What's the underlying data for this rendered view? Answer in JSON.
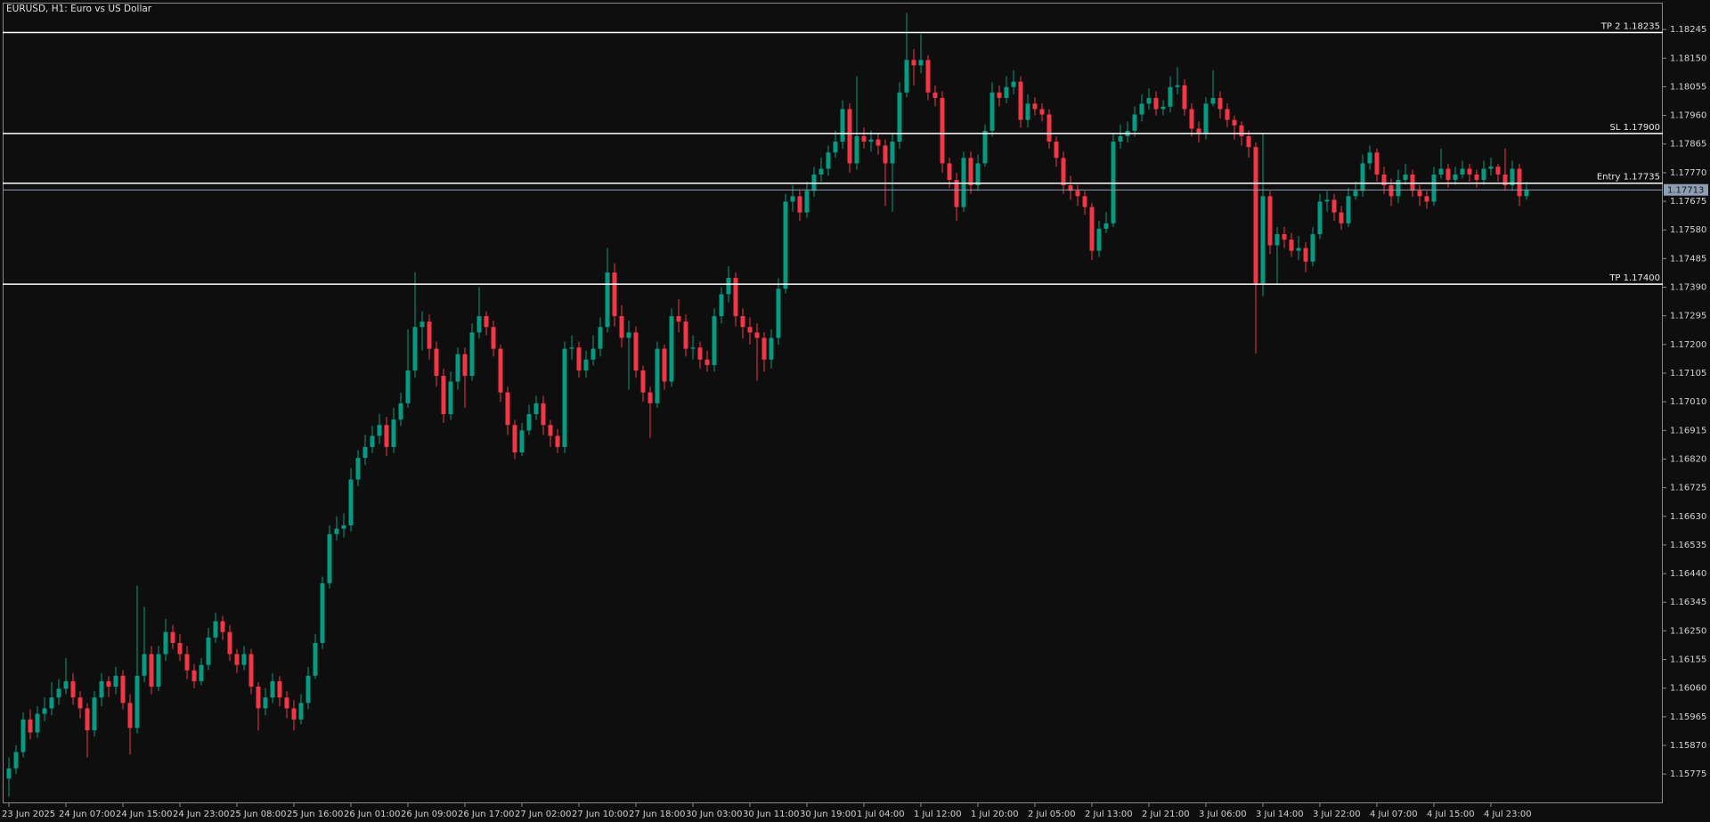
{
  "chart_data": {
    "type": "candlestick",
    "title": "EURUSD, H1:  Euro vs US Dollar",
    "colors": {
      "up": "#089981",
      "down": "#f23645",
      "level": "#ffffff",
      "current": "#8d9db4"
    },
    "categories": [
      "23 Jun 2025",
      null,
      null,
      null,
      null,
      null,
      null,
      null,
      "24 Jun 07:00",
      null,
      null,
      null,
      null,
      null,
      null,
      null,
      "24 Jun 15:00",
      null,
      null,
      null,
      null,
      null,
      null,
      null,
      "24 Jun 23:00",
      null,
      null,
      null,
      null,
      null,
      null,
      null,
      "25 Jun 08:00",
      null,
      null,
      null,
      null,
      null,
      null,
      null,
      "25 Jun 16:00",
      null,
      null,
      null,
      null,
      null,
      null,
      null,
      "26 Jun 01:00",
      null,
      null,
      null,
      null,
      null,
      null,
      null,
      "26 Jun 09:00",
      null,
      null,
      null,
      null,
      null,
      null,
      null,
      "26 Jun 17:00",
      null,
      null,
      null,
      null,
      null,
      null,
      null,
      "27 Jun 02:00",
      null,
      null,
      null,
      null,
      null,
      null,
      null,
      "27 Jun 10:00",
      null,
      null,
      null,
      null,
      null,
      null,
      null,
      "27 Jun 18:00",
      null,
      null,
      null,
      null,
      null,
      null,
      null,
      "30 Jun 03:00",
      null,
      null,
      null,
      null,
      null,
      null,
      null,
      "30 Jun 11:00",
      null,
      null,
      null,
      null,
      null,
      null,
      null,
      "30 Jun 19:00",
      null,
      null,
      null,
      null,
      null,
      null,
      null,
      "1 Jul 04:00",
      null,
      null,
      null,
      null,
      null,
      null,
      null,
      "1 Jul 12:00",
      null,
      null,
      null,
      null,
      null,
      null,
      null,
      "1 Jul 20:00",
      null,
      null,
      null,
      null,
      null,
      null,
      null,
      "2 Jul 05:00",
      null,
      null,
      null,
      null,
      null,
      null,
      null,
      "2 Jul 13:00",
      null,
      null,
      null,
      null,
      null,
      null,
      null,
      "2 Jul 21:00",
      null,
      null,
      null,
      null,
      null,
      null,
      null,
      "3 Jul 06:00",
      null,
      null,
      null,
      null,
      null,
      null,
      null,
      "3 Jul 14:00",
      null,
      null,
      null,
      null,
      null,
      null,
      null,
      "3 Jul 22:00",
      null,
      null,
      null,
      null,
      null,
      null,
      null,
      "4 Jul 07:00",
      null,
      null,
      null,
      null,
      null,
      null,
      null,
      "4 Jul 15:00",
      null,
      null,
      null,
      null,
      null,
      null,
      null,
      "4 Jul 23:00",
      null,
      null,
      null,
      null,
      null
    ],
    "open": [
      1.1576,
      1.15794,
      1.15848,
      1.15956,
      1.15913,
      1.15975,
      1.15993,
      1.16029,
      1.16058,
      1.16083,
      1.16029,
      1.15993,
      1.1592,
      1.16029,
      1.16083,
      1.16065,
      1.16101,
      1.16011,
      1.15928,
      1.16101,
      1.16173,
      1.16065,
      1.16173,
      1.16246,
      1.1621,
      1.16173,
      1.16119,
      1.16083,
      1.16137,
      1.16228,
      1.16282,
      1.16246,
      1.16173,
      1.16137,
      1.16173,
      1.16065,
      1.15993,
      1.16029,
      1.16083,
      1.16029,
      1.15993,
      1.15956,
      1.16011,
      1.16101,
      1.1621,
      1.16408,
      1.16571,
      1.16589,
      1.166,
      1.16752,
      1.16824,
      1.1686,
      1.16897,
      1.16933,
      1.1686,
      1.16951,
      1.17005,
      1.17114,
      1.17258,
      1.17276,
      1.17186,
      1.17096,
      1.16969,
      1.17077,
      1.17168,
      1.17096,
      1.1724,
      1.17294,
      1.17258,
      1.17186,
      1.17041,
      1.16933,
      1.16842,
      1.16915,
      1.16969,
      1.17005,
      1.16933,
      1.16897,
      1.1686,
      1.17186,
      1.1719,
      1.17114,
      1.1715,
      1.17186,
      1.17258,
      1.17439,
      1.17294,
      1.17222,
      1.1724,
      1.17114,
      1.17041,
      1.17005,
      1.17186,
      1.17077,
      1.17294,
      1.17276,
      1.17186,
      1.1719,
      1.1715,
      1.17132,
      1.17294,
      1.17367,
      1.17421,
      1.17294,
      1.17258,
      1.1724,
      1.17222,
      1.1715,
      1.17222,
      1.17385,
      1.17674,
      1.17692,
      1.17638,
      1.1771,
      1.17764,
      1.17783,
      1.17837,
      1.17873,
      1.17981,
      1.17801,
      1.17891,
      1.17873,
      1.1788,
      1.1786,
      1.17801,
      1.17873,
      1.18036,
      1.18144,
      1.18126,
      1.18144,
      1.18036,
      1.18018,
      1.17801,
      1.17746,
      1.17656,
      1.17819,
      1.17728,
      1.17801,
      1.17909,
      1.18036,
      1.18018,
      1.18054,
      1.18072,
      1.17945,
      1.17999,
      1.17981,
      1.17963,
      1.17873,
      1.17819,
      1.17728,
      1.1771,
      1.17692,
      1.17656,
      1.17511,
      1.17584,
      1.17602,
      1.17873,
      1.17891,
      1.17909,
      1.17963,
      1.17999,
      1.18018,
      1.17981,
      1.17989,
      1.18054,
      1.1806,
      1.17981,
      1.17916,
      1.17902,
      1.17999,
      1.18018,
      1.17981,
      1.17945,
      1.17927,
      1.17891,
      1.17855,
      1.17403,
      1.17692,
      1.17529,
      1.17566,
      1.17548,
      1.17511,
      1.1752,
      1.17475,
      1.17566,
      1.17674,
      1.1768,
      1.17638,
      1.17602,
      1.17692,
      1.1771,
      1.17801,
      1.17837,
      1.17764,
      1.17728,
      1.17692,
      1.17746,
      1.17764,
      1.1771,
      1.17692,
      1.17674,
      1.17764,
      1.17783,
      1.17746,
      1.17764,
      1.17783,
      1.17764,
      1.17746,
      1.17783,
      1.1779,
      1.17764,
      1.17728,
      1.17783,
      1.17692
    ],
    "high": [
      1.1583,
      1.1587,
      1.1598,
      1.1599,
      1.16,
      1.1603,
      1.1608,
      1.1609,
      1.1616,
      1.1611,
      1.1605,
      1.1601,
      1.1605,
      1.1611,
      1.161,
      1.1613,
      1.1612,
      1.1604,
      1.164,
      1.1633,
      1.162,
      1.162,
      1.1629,
      1.1627,
      1.1624,
      1.162,
      1.1614,
      1.1616,
      1.1626,
      1.1631,
      1.163,
      1.1627,
      1.1619,
      1.162,
      1.1619,
      1.1608,
      1.1606,
      1.1611,
      1.161,
      1.1605,
      1.1602,
      1.1604,
      1.1613,
      1.1624,
      1.1643,
      1.166,
      1.1663,
      1.1664,
      1.1679,
      1.1685,
      1.169,
      1.1693,
      1.1697,
      1.1696,
      1.1699,
      1.1704,
      1.1725,
      1.1744,
      1.1731,
      1.173,
      1.1721,
      1.1712,
      1.1711,
      1.1719,
      1.1719,
      1.1727,
      1.1739,
      1.1731,
      1.1728,
      1.172,
      1.1706,
      1.1695,
      1.1694,
      1.17,
      1.1703,
      1.1703,
      1.1695,
      1.1692,
      1.1721,
      1.1723,
      1.1721,
      1.1718,
      1.1723,
      1.1729,
      1.1752,
      1.1747,
      1.1733,
      1.1728,
      1.1726,
      1.1713,
      1.1706,
      1.1721,
      1.172,
      1.1732,
      1.1735,
      1.173,
      1.1723,
      1.1721,
      1.1718,
      1.1732,
      1.1739,
      1.1746,
      1.1744,
      1.1732,
      1.1729,
      1.1727,
      1.1724,
      1.1725,
      1.1742,
      1.177,
      1.1773,
      1.1771,
      1.1774,
      1.1779,
      1.1782,
      1.1786,
      1.1791,
      1.1801,
      1.18,
      1.1809,
      1.1792,
      1.1791,
      1.179,
      1.1788,
      1.179,
      1.1807,
      1.183,
      1.1818,
      1.1823,
      1.1816,
      1.1806,
      1.1804,
      1.1782,
      1.1777,
      1.1784,
      1.1784,
      1.1783,
      1.1793,
      1.1807,
      1.1806,
      1.1809,
      1.1811,
      1.1809,
      1.1803,
      1.1802,
      1.18,
      1.1798,
      1.1789,
      1.1784,
      1.1776,
      1.1773,
      1.1771,
      1.1767,
      1.1761,
      1.1764,
      1.179,
      1.1793,
      1.1794,
      1.1799,
      1.1803,
      1.1805,
      1.1804,
      1.1801,
      1.1809,
      1.1812,
      1.1808,
      1.18,
      1.1794,
      1.1802,
      1.1811,
      1.1804,
      1.18,
      1.1796,
      1.1794,
      1.1791,
      1.1787,
      1.179,
      1.1771,
      1.1759,
      1.1759,
      1.1757,
      1.1756,
      1.1754,
      1.1759,
      1.177,
      1.1771,
      1.177,
      1.1766,
      1.1772,
      1.1774,
      1.1783,
      1.1786,
      1.1785,
      1.1779,
      1.1775,
      1.1778,
      1.178,
      1.1778,
      1.1773,
      1.1771,
      1.1779,
      1.1785,
      1.178,
      1.1779,
      1.1781,
      1.178,
      1.1778,
      1.1781,
      1.1782,
      1.178,
      1.1785,
      1.1781,
      1.178,
      1.1774
    ],
    "low": [
      1.157,
      1.15775,
      1.1583,
      1.1589,
      1.15895,
      1.1595,
      1.1597,
      1.16005,
      1.1604,
      1.16005,
      1.1596,
      1.1583,
      1.159,
      1.16,
      1.1603,
      1.1604,
      1.1599,
      1.1584,
      1.1591,
      1.1608,
      1.1604,
      1.1605,
      1.1615,
      1.1619,
      1.1615,
      1.1609,
      1.1606,
      1.1607,
      1.1612,
      1.1621,
      1.1622,
      1.1615,
      1.1611,
      1.1612,
      1.1604,
      1.1592,
      1.1597,
      1.1601,
      1.16,
      1.1596,
      1.1592,
      1.1594,
      1.1599,
      1.1609,
      1.1619,
      1.1639,
      1.1655,
      1.1656,
      1.1658,
      1.1673,
      1.168,
      1.1684,
      1.1687,
      1.1683,
      1.1684,
      1.1693,
      1.1699,
      1.1709,
      1.1718,
      1.1715,
      1.1706,
      1.1694,
      1.1695,
      1.1705,
      1.1699,
      1.1708,
      1.1722,
      1.1723,
      1.1716,
      1.1701,
      1.169,
      1.1682,
      1.1683,
      1.169,
      1.1695,
      1.169,
      1.1686,
      1.1684,
      1.1684,
      1.1715,
      1.1709,
      1.1709,
      1.1713,
      1.1716,
      1.1724,
      1.1726,
      1.1719,
      1.1705,
      1.1709,
      1.1701,
      1.1689,
      1.1699,
      1.1705,
      1.1706,
      1.1724,
      1.1716,
      1.1715,
      1.1712,
      1.1711,
      1.1711,
      1.1727,
      1.1734,
      1.1726,
      1.1722,
      1.172,
      1.1708,
      1.1711,
      1.1712,
      1.172,
      1.1737,
      1.1764,
      1.1761,
      1.1762,
      1.1769,
      1.1774,
      1.1776,
      1.1782,
      1.1785,
      1.1777,
      1.1778,
      1.1785,
      1.1784,
      1.1783,
      1.1766,
      1.1764,
      1.1785,
      1.1802,
      1.1806,
      1.181,
      1.1801,
      1.1799,
      1.1777,
      1.1772,
      1.1761,
      1.1764,
      1.177,
      1.1771,
      1.1779,
      1.1789,
      1.1799,
      1.18,
      1.1803,
      1.1792,
      1.1792,
      1.1796,
      1.1794,
      1.1785,
      1.1779,
      1.177,
      1.1768,
      1.1766,
      1.1763,
      1.1748,
      1.1749,
      1.1757,
      1.1759,
      1.1785,
      1.1787,
      1.1789,
      1.1794,
      1.1798,
      1.1796,
      1.1796,
      1.1797,
      1.1803,
      1.1796,
      1.1789,
      1.1787,
      1.1788,
      1.1799,
      1.1795,
      1.1792,
      1.1788,
      1.1786,
      1.1782,
      1.1717,
      1.1736,
      1.175,
      1.174,
      1.1752,
      1.1749,
      1.1748,
      1.1744,
      1.1746,
      1.1755,
      1.1764,
      1.1761,
      1.1758,
      1.1759,
      1.1768,
      1.1769,
      1.1778,
      1.1774,
      1.177,
      1.1766,
      1.1767,
      1.1773,
      1.1769,
      1.1766,
      1.1765,
      1.1766,
      1.1775,
      1.1772,
      1.1773,
      1.1775,
      1.1774,
      1.1772,
      1.1773,
      1.1776,
      1.1774,
      1.1771,
      1.1771,
      1.1766,
      1.1768
    ],
    "close": [
      1.15794,
      1.15848,
      1.15956,
      1.15913,
      1.15975,
      1.15993,
      1.16029,
      1.16058,
      1.16083,
      1.16029,
      1.15993,
      1.1592,
      1.16029,
      1.16083,
      1.16065,
      1.16101,
      1.16011,
      1.15928,
      1.16101,
      1.16173,
      1.16065,
      1.16173,
      1.16246,
      1.1621,
      1.16173,
      1.16119,
      1.16083,
      1.16137,
      1.16228,
      1.16282,
      1.16246,
      1.16173,
      1.16137,
      1.16173,
      1.16065,
      1.15993,
      1.16029,
      1.16083,
      1.16029,
      1.15993,
      1.15956,
      1.16011,
      1.16101,
      1.1621,
      1.16408,
      1.16571,
      1.16589,
      1.166,
      1.16752,
      1.16824,
      1.1686,
      1.16897,
      1.16933,
      1.1686,
      1.16951,
      1.17005,
      1.17114,
      1.17258,
      1.17276,
      1.17186,
      1.17096,
      1.16969,
      1.17077,
      1.17168,
      1.17096,
      1.1724,
      1.17294,
      1.17258,
      1.17186,
      1.17041,
      1.16933,
      1.16842,
      1.16915,
      1.16969,
      1.17005,
      1.16933,
      1.16897,
      1.1686,
      1.17186,
      1.1719,
      1.17114,
      1.1715,
      1.17186,
      1.17258,
      1.17439,
      1.17294,
      1.17222,
      1.1724,
      1.17114,
      1.17041,
      1.17005,
      1.17186,
      1.17077,
      1.17294,
      1.17276,
      1.17186,
      1.1719,
      1.1715,
      1.17132,
      1.17294,
      1.17367,
      1.17421,
      1.17294,
      1.17258,
      1.1724,
      1.17222,
      1.1715,
      1.17222,
      1.17385,
      1.17674,
      1.17692,
      1.17638,
      1.1771,
      1.17764,
      1.17783,
      1.17837,
      1.17873,
      1.17981,
      1.17801,
      1.17891,
      1.17873,
      1.1788,
      1.1786,
      1.17801,
      1.17873,
      1.18036,
      1.18144,
      1.18126,
      1.18144,
      1.18036,
      1.18018,
      1.17801,
      1.17746,
      1.17656,
      1.17819,
      1.17728,
      1.17801,
      1.17909,
      1.18036,
      1.18018,
      1.18054,
      1.18072,
      1.17945,
      1.17999,
      1.17981,
      1.17963,
      1.17873,
      1.17819,
      1.17728,
      1.1771,
      1.17692,
      1.17656,
      1.17511,
      1.17584,
      1.17602,
      1.17873,
      1.17891,
      1.17909,
      1.17963,
      1.17999,
      1.18018,
      1.17981,
      1.17989,
      1.18054,
      1.1806,
      1.17981,
      1.17916,
      1.17902,
      1.17999,
      1.18018,
      1.17981,
      1.17945,
      1.17927,
      1.17891,
      1.17855,
      1.17403,
      1.17692,
      1.17529,
      1.17566,
      1.17548,
      1.17511,
      1.1752,
      1.17475,
      1.17566,
      1.17674,
      1.1768,
      1.17638,
      1.17602,
      1.17692,
      1.1771,
      1.17801,
      1.17837,
      1.17764,
      1.17728,
      1.17692,
      1.17746,
      1.17764,
      1.1771,
      1.17692,
      1.17674,
      1.17764,
      1.17783,
      1.17746,
      1.17764,
      1.17783,
      1.17764,
      1.17746,
      1.17783,
      1.1779,
      1.17764,
      1.17728,
      1.17783,
      1.17692,
      1.17713
    ],
    "ylim": [
      1.15678,
      1.18334
    ],
    "yticks": [
      1.18245,
      {
        "value": 1.1815,
        "label": "1.18150"
      },
      1.18055,
      {
        "value": 1.1796,
        "label": "1.17960"
      },
      1.17865,
      {
        "value": 1.1777,
        "label": "1.17770"
      },
      1.17675,
      {
        "value": 1.1758,
        "label": "1.17580"
      },
      1.17485,
      {
        "value": 1.1739,
        "label": "1.17390"
      },
      1.17295,
      {
        "value": 1.172,
        "label": "1.17200"
      },
      1.17105,
      {
        "value": 1.1701,
        "label": "1.17010"
      },
      1.16915,
      {
        "value": 1.1682,
        "label": "1.16820"
      },
      1.16725,
      {
        "value": 1.1663,
        "label": "1.16630"
      },
      1.16535,
      {
        "value": 1.1644,
        "label": "1.16440"
      },
      1.16345,
      {
        "value": 1.1625,
        "label": "1.16250"
      },
      1.16155,
      {
        "value": 1.1606,
        "label": "1.16060"
      },
      1.15965,
      {
        "value": 1.1587,
        "label": "1.15870"
      },
      1.15775
    ],
    "grid": false,
    "levels": [
      {
        "label": "TP 2 1.18235",
        "value": 1.18235
      },
      {
        "label": "SL 1.17900",
        "value": 1.179
      },
      {
        "label": "Entry 1.17735",
        "value": 1.17735
      },
      {
        "label": "TP 1.17400",
        "value": 1.174
      }
    ],
    "current_price": 1.17713
  }
}
